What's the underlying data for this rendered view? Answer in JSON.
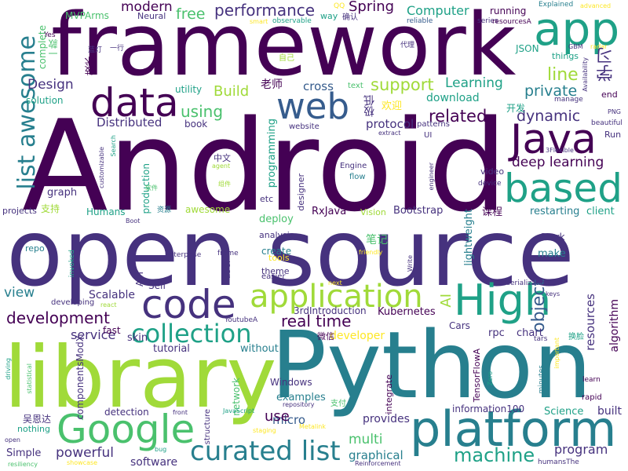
{
  "palette": {
    "dark_purple": "#440154",
    "indigo": "#46327e",
    "slate_blue": "#365c8d",
    "steel_blue": "#277f8e",
    "teal": "#1fa187",
    "green": "#4ac16d",
    "lime": "#a0da39",
    "yellow": "#fde725"
  },
  "words": [
    "Android",
    "open source",
    "framework",
    "Python",
    "library",
    "platform",
    "app",
    "Google",
    "code",
    "data",
    "web",
    "Java",
    "High",
    "based",
    "application",
    "curated list",
    "collection",
    "list awesome",
    "machine",
    "AI",
    "real time",
    "development",
    "object",
    "line",
    "deep learning",
    "Spring",
    "modern",
    "free",
    "performance",
    "Computer",
    "running",
    "support",
    "related",
    "private",
    "dynamic",
    "Build",
    "using",
    "Design",
    "Learning",
    "Distributed",
    "cross",
    "download",
    "protocol",
    "RxJava",
    "Bootstrap",
    "view",
    "Scalable",
    "service",
    "Kubernetes",
    "multi",
    "graphical",
    "program",
    "powerful",
    "Simple",
    "provides",
    "software",
    "micro",
    "examples",
    "Windows",
    "developer",
    "chart",
    "rpc",
    "Science",
    "built",
    "resources",
    "algorithm",
    "lightweight",
    "restarting",
    "client",
    "make",
    "Stark",
    "graph",
    "Humans",
    "awesome",
    "deploy",
    "analysis",
    "create",
    "theme",
    "tools",
    "Vision",
    "production",
    "programming",
    "designer",
    "flow",
    "Engine",
    "website",
    "patterns",
    "UI",
    "video",
    "device",
    "book",
    "utility",
    "solution",
    "complete",
    "MVPArms",
    "Neural",
    "way",
    "QQ",
    "reliable",
    "smart",
    "observable",
    "Yes",
    "series",
    "resourcesA",
    "Explained",
    "advanced",
    "GBM",
    "radar",
    "Availability",
    "things",
    "manage",
    "end",
    "PNG",
    "beautiful",
    "Run",
    "3Flexible",
    "JSON",
    "text",
    "extract",
    "Search",
    "customizable",
    "agent",
    "engineer",
    "projects",
    "Boot",
    "etc",
    "repo",
    "invoked",
    "Enterprise",
    "frame",
    "friendly",
    "next",
    "easier",
    "user",
    "API",
    "Self",
    "developing",
    "react",
    "YoutubeA",
    "3rdIntroduction",
    "Write",
    "deserialization",
    "keys",
    "tars",
    "important",
    "minutes",
    "learn",
    "rapid",
    "Zero",
    "TensorFlowA",
    "integrate",
    "repository",
    "Cars",
    "driving",
    "statistical",
    "componentsModX",
    "fast",
    "skin",
    "tutorial",
    "without",
    "network",
    "JavaScript",
    "front",
    "detection",
    "structure",
    "bug",
    "staging",
    "Metalink",
    "nothing",
    "open",
    "resiliency",
    "showcase",
    "Reinforcement",
    "humansThe",
    "information100",
    "use",
    "学习",
    "笔记",
    "微信",
    "课程",
    "欢迎",
    "开发",
    "中文",
    "老师",
    "吴恩达",
    "一款",
    "技术",
    "支持",
    "自己",
    "代理",
    "确认",
    "极低",
    "换脸",
    "资源",
    "蓝灯",
    "一行",
    "软件",
    "组件",
    "支付",
    "鸿蒙"
  ]
}
